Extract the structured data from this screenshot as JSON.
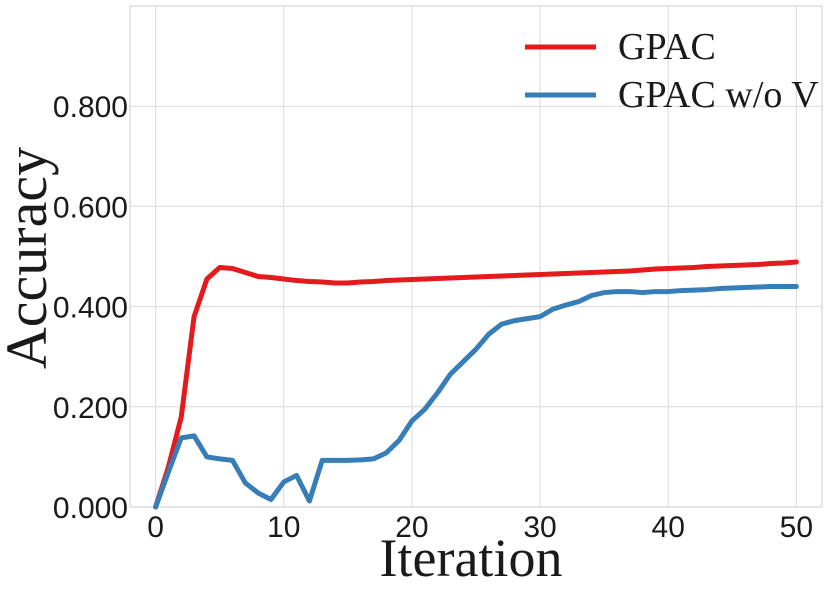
{
  "chart_data": {
    "type": "line",
    "title": "",
    "xlabel": "Iteration",
    "ylabel": "Accuracy",
    "xlim": [
      -2,
      52
    ],
    "ylim": [
      0,
      1.0
    ],
    "x_ticks": [
      0,
      10,
      20,
      30,
      40,
      50
    ],
    "y_ticks": [
      0.0,
      0.2,
      0.4,
      0.6,
      0.8
    ],
    "x_tick_labels": [
      "0",
      "10",
      "20",
      "30",
      "40",
      "50"
    ],
    "y_tick_labels": [
      "0.000",
      "0.200",
      "0.400",
      "0.600",
      "0.800"
    ],
    "grid": true,
    "legend_position": "top-right",
    "series": [
      {
        "name": "GPAC",
        "color": "#e41a1c",
        "x": [
          0,
          1,
          2,
          3,
          4,
          5,
          6,
          7,
          8,
          9,
          10,
          11,
          12,
          13,
          14,
          15,
          16,
          17,
          18,
          19,
          20,
          21,
          22,
          23,
          24,
          25,
          26,
          27,
          28,
          29,
          30,
          31,
          32,
          33,
          34,
          35,
          36,
          37,
          38,
          39,
          40,
          41,
          42,
          43,
          44,
          45,
          46,
          47,
          48,
          49,
          50
        ],
        "values": [
          0.0,
          0.08,
          0.18,
          0.38,
          0.455,
          0.478,
          0.476,
          0.468,
          0.46,
          0.458,
          0.455,
          0.452,
          0.45,
          0.449,
          0.447,
          0.447,
          0.449,
          0.45,
          0.452,
          0.453,
          0.454,
          0.455,
          0.456,
          0.457,
          0.458,
          0.459,
          0.46,
          0.461,
          0.462,
          0.463,
          0.464,
          0.465,
          0.466,
          0.467,
          0.468,
          0.469,
          0.47,
          0.471,
          0.473,
          0.475,
          0.476,
          0.477,
          0.478,
          0.48,
          0.481,
          0.482,
          0.483,
          0.484,
          0.486,
          0.487,
          0.489
        ]
      },
      {
        "name": "GPAC w/o V",
        "color": "#377eb8",
        "x": [
          0,
          1,
          2,
          3,
          4,
          5,
          6,
          7,
          8,
          9,
          10,
          11,
          12,
          13,
          14,
          15,
          16,
          17,
          18,
          19,
          20,
          21,
          22,
          23,
          24,
          25,
          26,
          27,
          28,
          29,
          30,
          31,
          32,
          33,
          34,
          35,
          36,
          37,
          38,
          39,
          40,
          41,
          42,
          43,
          44,
          45,
          46,
          47,
          48,
          49,
          50
        ],
        "values": [
          0.0,
          0.07,
          0.138,
          0.142,
          0.1,
          0.096,
          0.093,
          0.048,
          0.028,
          0.015,
          0.05,
          0.063,
          0.012,
          0.093,
          0.093,
          0.093,
          0.094,
          0.096,
          0.108,
          0.133,
          0.172,
          0.195,
          0.228,
          0.265,
          0.29,
          0.315,
          0.345,
          0.365,
          0.372,
          0.376,
          0.38,
          0.395,
          0.403,
          0.41,
          0.422,
          0.428,
          0.43,
          0.43,
          0.428,
          0.43,
          0.43,
          0.432,
          0.433,
          0.434,
          0.436,
          0.437,
          0.438,
          0.439,
          0.44,
          0.44,
          0.44
        ]
      }
    ]
  }
}
